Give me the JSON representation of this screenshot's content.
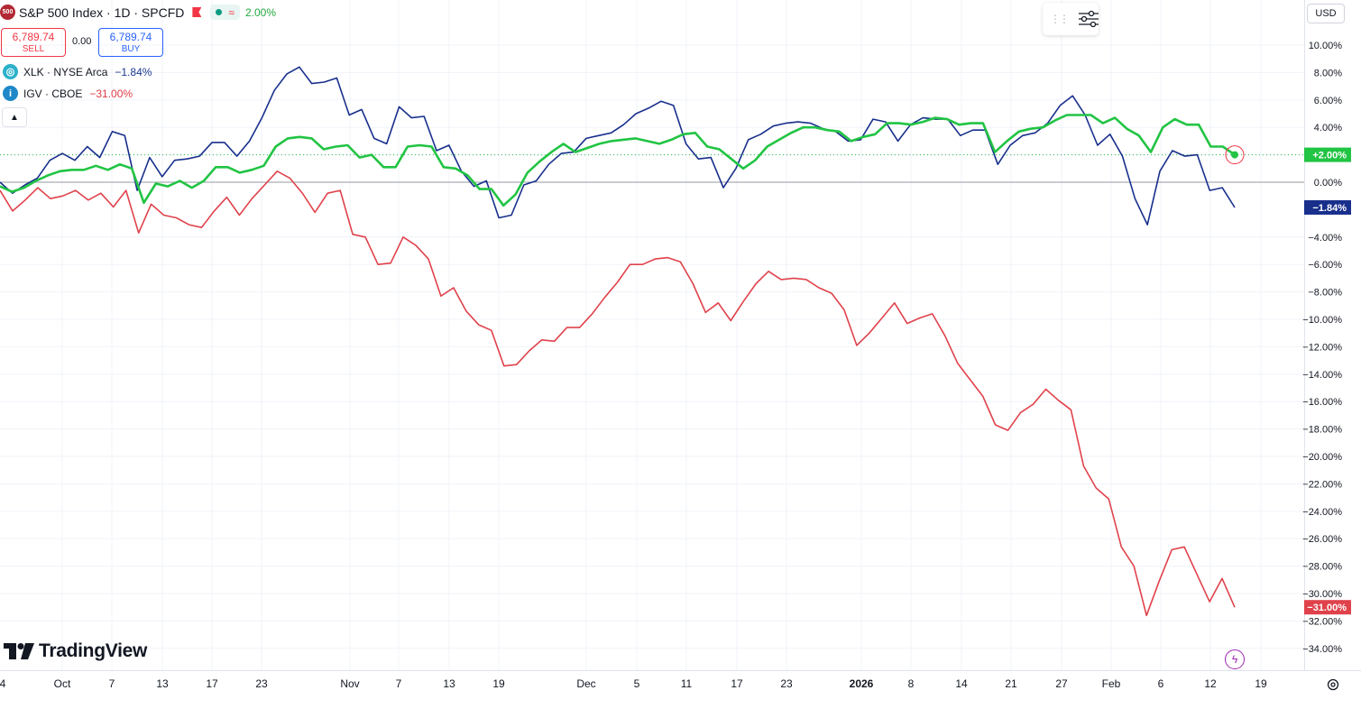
{
  "header": {
    "symbol_badge": "500",
    "title": "S&P 500 Index · 1D · SPCFD",
    "change_pct": "2.00%",
    "approx_symbol": "≈"
  },
  "trade": {
    "sell_price": "6,789.74",
    "sell_label": "SELL",
    "spread": "0.00",
    "buy_price": "6,789.74",
    "buy_label": "BUY"
  },
  "comparisons": [
    {
      "icon": "xlk-icon",
      "label": "XLK · NYSE Arca",
      "change": "−1.84%",
      "color": "#1d3a8f"
    },
    {
      "icon": "igv-icon",
      "label": "IGV · CBOE",
      "change": "−31.00%",
      "color": "#e03b44"
    }
  ],
  "currency": "USD",
  "logo_text": "TradingView",
  "colors": {
    "spx": "#21c443",
    "xlk": "#182f8c",
    "igv": "#e0424b",
    "grid": "#f0f3fa"
  },
  "chart_data": {
    "type": "line",
    "x_ticks": [
      "4",
      "Oct",
      "7",
      "13",
      "17",
      "23",
      "Nov",
      "7",
      "13",
      "19",
      "Dec",
      "5",
      "11",
      "17",
      "23",
      "2026",
      "8",
      "14",
      "21",
      "27",
      "Feb",
      "6",
      "12",
      "19"
    ],
    "y_ticks": [
      "10.00%",
      "8.00%",
      "6.00%",
      "4.00%",
      "2.00%",
      "0.00%",
      "−4.00%",
      "−6.00%",
      "−8.00%",
      "−10.00%",
      "−12.00%",
      "−14.00%",
      "−16.00%",
      "−18.00%",
      "−20.00%",
      "−22.00%",
      "−24.00%",
      "−26.00%",
      "−28.00%",
      "−30.00%",
      "−32.00%",
      "−34.00%"
    ],
    "ylim": [
      -35.5,
      11.5
    ],
    "series": [
      {
        "name": "S&P 500 Index",
        "color": "#21c443",
        "last_label": "+2.00%",
        "values": [
          -0.3,
          -0.7,
          -0.4,
          0.1,
          0.5,
          0.8,
          0.9,
          0.9,
          1.2,
          0.9,
          1.3,
          1.0,
          -1.5,
          -0.1,
          -0.3,
          0.1,
          -0.4,
          0.1,
          1.1,
          1.1,
          0.7,
          0.9,
          1.2,
          2.6,
          3.2,
          3.3,
          3.2,
          2.4,
          2.6,
          2.7,
          1.8,
          2.0,
          1.1,
          1.1,
          2.6,
          2.7,
          2.6,
          1.1,
          1.0,
          0.5,
          -0.5,
          -0.5,
          -1.7,
          -0.9,
          0.7,
          1.5,
          2.2,
          2.8,
          2.2,
          2.5,
          2.8,
          3.0,
          3.1,
          3.2,
          3.0,
          2.8,
          3.1,
          3.5,
          3.6,
          2.6,
          2.4,
          1.7,
          1.0,
          1.6,
          2.6,
          3.1,
          3.6,
          4.0,
          4.0,
          3.8,
          3.7,
          3.0,
          3.3,
          3.5,
          4.3,
          4.3,
          4.2,
          4.4,
          4.7,
          4.6,
          4.2,
          4.3,
          4.3,
          2.2,
          3.0,
          3.7,
          3.9,
          4.0,
          4.5,
          4.9,
          4.9,
          4.9,
          4.3,
          4.7,
          3.9,
          3.4,
          2.2,
          4.0,
          4.6,
          4.2,
          4.2,
          2.6,
          2.6,
          2.0
        ]
      },
      {
        "name": "XLK",
        "color": "#182f8c",
        "last_label": "−1.84%",
        "values": [
          0.0,
          -0.8,
          -0.2,
          0.3,
          1.6,
          2.1,
          1.6,
          2.6,
          1.8,
          3.7,
          3.4,
          -0.6,
          1.8,
          0.4,
          1.6,
          1.7,
          1.9,
          2.9,
          2.9,
          1.9,
          3.0,
          4.7,
          6.7,
          7.9,
          8.4,
          7.2,
          7.3,
          7.6,
          4.9,
          5.3,
          3.2,
          2.8,
          5.5,
          4.7,
          4.8,
          2.3,
          2.7,
          0.8,
          -0.3,
          0.1,
          -2.6,
          -2.4,
          -0.2,
          0.1,
          1.3,
          2.1,
          2.2,
          3.2,
          3.4,
          3.6,
          4.2,
          5.0,
          5.4,
          5.9,
          5.6,
          2.8,
          1.7,
          1.8,
          -0.4,
          1.0,
          3.1,
          3.5,
          4.1,
          4.3,
          4.4,
          4.3,
          3.9,
          3.7,
          3.0,
          3.1,
          4.6,
          4.4,
          3.0,
          4.2,
          4.7,
          4.6,
          4.6,
          3.4,
          3.8,
          3.8,
          1.3,
          2.7,
          3.4,
          3.6,
          4.3,
          5.6,
          6.3,
          4.9,
          2.7,
          3.5,
          1.9,
          -1.2,
          -3.1,
          0.8,
          2.3,
          1.9,
          2.0,
          -0.6,
          -0.4,
          -1.84
        ]
      },
      {
        "name": "IGV",
        "color": "#e0424b",
        "last_label": "−31.00%",
        "values": [
          -0.6,
          -2.1,
          -1.3,
          -0.4,
          -1.2,
          -1.0,
          -0.6,
          -1.3,
          -0.8,
          -1.8,
          -0.6,
          -3.7,
          -1.6,
          -2.4,
          -2.6,
          -3.1,
          -3.3,
          -2.1,
          -1.1,
          -2.4,
          -1.2,
          -0.2,
          0.8,
          0.3,
          -0.8,
          -2.2,
          -0.8,
          -0.6,
          -3.8,
          -4.0,
          -6.0,
          -5.9,
          -4.0,
          -4.6,
          -5.6,
          -8.3,
          -7.7,
          -9.4,
          -10.4,
          -10.8,
          -13.4,
          -13.3,
          -12.3,
          -11.5,
          -11.6,
          -10.6,
          -10.6,
          -9.6,
          -8.4,
          -7.3,
          -6.0,
          -6.0,
          -5.6,
          -5.5,
          -5.8,
          -7.4,
          -9.5,
          -8.8,
          -10.1,
          -8.7,
          -7.4,
          -6.5,
          -7.1,
          -7.0,
          -7.1,
          -7.7,
          -8.1,
          -9.3,
          -11.9,
          -11.0,
          -9.9,
          -8.8,
          -10.3,
          -9.9,
          -9.6,
          -11.2,
          -13.2,
          -14.4,
          -15.6,
          -17.7,
          -18.1,
          -16.8,
          -16.2,
          -15.1,
          -15.9,
          -16.6,
          -20.7,
          -22.3,
          -23.1,
          -26.6,
          -28.0,
          -31.6,
          -29.1,
          -26.8,
          -26.6,
          -28.6,
          -30.6,
          -28.9,
          -31.0
        ]
      }
    ]
  }
}
